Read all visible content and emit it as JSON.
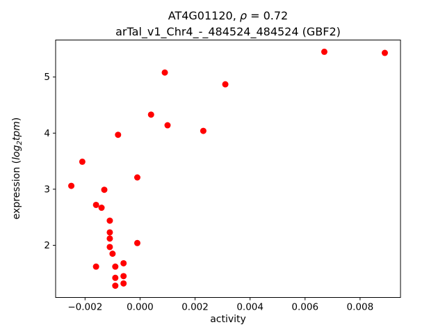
{
  "figure": {
    "title_line1": {
      "prefix": "AT4G01120, ",
      "rho": "ρ",
      "suffix": " = 0.72"
    },
    "title_line2": "arTal_v1_Chr4_-_484524_484524 (GBF2)",
    "xlabel": "activity",
    "ylabel": {
      "prefix": "expression (",
      "log": "log",
      "sub": "2",
      "tpm": "tpm",
      "suffix": ")"
    }
  },
  "chart_data": {
    "type": "scatter",
    "title": "AT4G01120, ρ = 0.72 — arTal_v1_Chr4_-_484524_484524 (GBF2)",
    "xlabel": "activity",
    "ylabel": "expression (log2 tpm)",
    "marker": {
      "color": "#ff0000",
      "radius_px": 4.5,
      "shape": "circle"
    },
    "grid": false,
    "legend": null,
    "xlim": [
      -0.00307,
      0.00947
    ],
    "ylim": [
      1.07,
      5.66
    ],
    "xticks": [
      -0.002,
      0.0,
      0.002,
      0.004,
      0.006,
      0.008
    ],
    "xtick_labels": [
      "−0.002",
      "0.000",
      "0.002",
      "0.004",
      "0.006",
      "0.008"
    ],
    "yticks": [
      2,
      3,
      4,
      5
    ],
    "ytick_labels": [
      "2",
      "3",
      "4",
      "5"
    ],
    "x": [
      0.0067,
      0.0089,
      0.0009,
      0.0031,
      0.0004,
      0.001,
      0.0023,
      -0.0008,
      -0.0021,
      -0.0001,
      -0.0025,
      -0.0013,
      -0.0016,
      -0.0014,
      -0.0011,
      -0.0011,
      -0.0011,
      -0.0001,
      -0.0011,
      -0.001,
      -0.0016,
      -0.0009,
      -0.0006,
      -0.0006,
      -0.0009,
      -0.0009,
      -0.0006
    ],
    "y": [
      5.45,
      5.43,
      5.08,
      4.87,
      4.33,
      4.14,
      4.04,
      3.97,
      3.49,
      3.21,
      3.06,
      2.99,
      2.72,
      2.67,
      2.44,
      2.23,
      2.12,
      2.04,
      1.97,
      1.85,
      1.62,
      1.62,
      1.68,
      1.45,
      1.42,
      1.28,
      1.32
    ]
  }
}
